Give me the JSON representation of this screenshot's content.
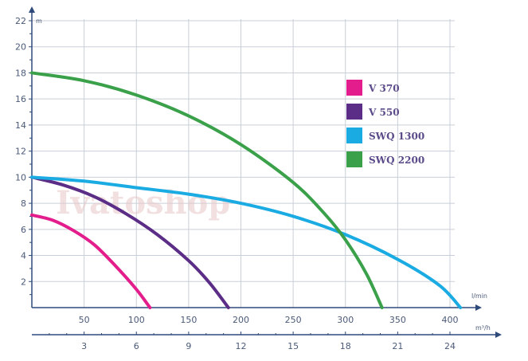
{
  "watermark": "Ivatoshop",
  "chart_data": {
    "type": "line",
    "y_unit": "m",
    "x_unit": "l/min",
    "x2_unit": "m³/h",
    "ylim": [
      0,
      22
    ],
    "xlim": [
      0,
      450
    ],
    "y_ticks": [
      2,
      4,
      6,
      8,
      10,
      12,
      14,
      16,
      18,
      20,
      22
    ],
    "x_ticks": [
      50,
      100,
      150,
      200,
      250,
      300,
      350,
      400
    ],
    "x2_ticks": [
      3,
      6,
      9,
      12,
      15,
      18,
      21,
      24
    ],
    "grid": true,
    "legend_position": "right",
    "series": [
      {
        "name": "V 370",
        "color": "#e31e8c",
        "x": [
          0,
          20,
          40,
          60,
          80,
          100,
          113
        ],
        "y": [
          7.1,
          6.7,
          5.9,
          4.8,
          3.2,
          1.4,
          0
        ]
      },
      {
        "name": "V 550",
        "color": "#5b2d86",
        "x": [
          0,
          30,
          60,
          90,
          120,
          150,
          170,
          188
        ],
        "y": [
          10.0,
          9.4,
          8.5,
          7.2,
          5.6,
          3.6,
          1.9,
          0
        ]
      },
      {
        "name": "SWQ 1300",
        "color": "#1aabe3",
        "x": [
          0,
          50,
          100,
          150,
          200,
          250,
          300,
          350,
          390,
          410
        ],
        "y": [
          10.0,
          9.7,
          9.2,
          8.7,
          8.0,
          7.0,
          5.6,
          3.7,
          1.7,
          0
        ]
      },
      {
        "name": "SWQ 2200",
        "color": "#3aa14a",
        "x": [
          0,
          50,
          100,
          150,
          200,
          250,
          280,
          300,
          320,
          335
        ],
        "y": [
          18.0,
          17.4,
          16.3,
          14.7,
          12.5,
          9.6,
          7.2,
          5.2,
          2.6,
          0
        ]
      }
    ]
  }
}
